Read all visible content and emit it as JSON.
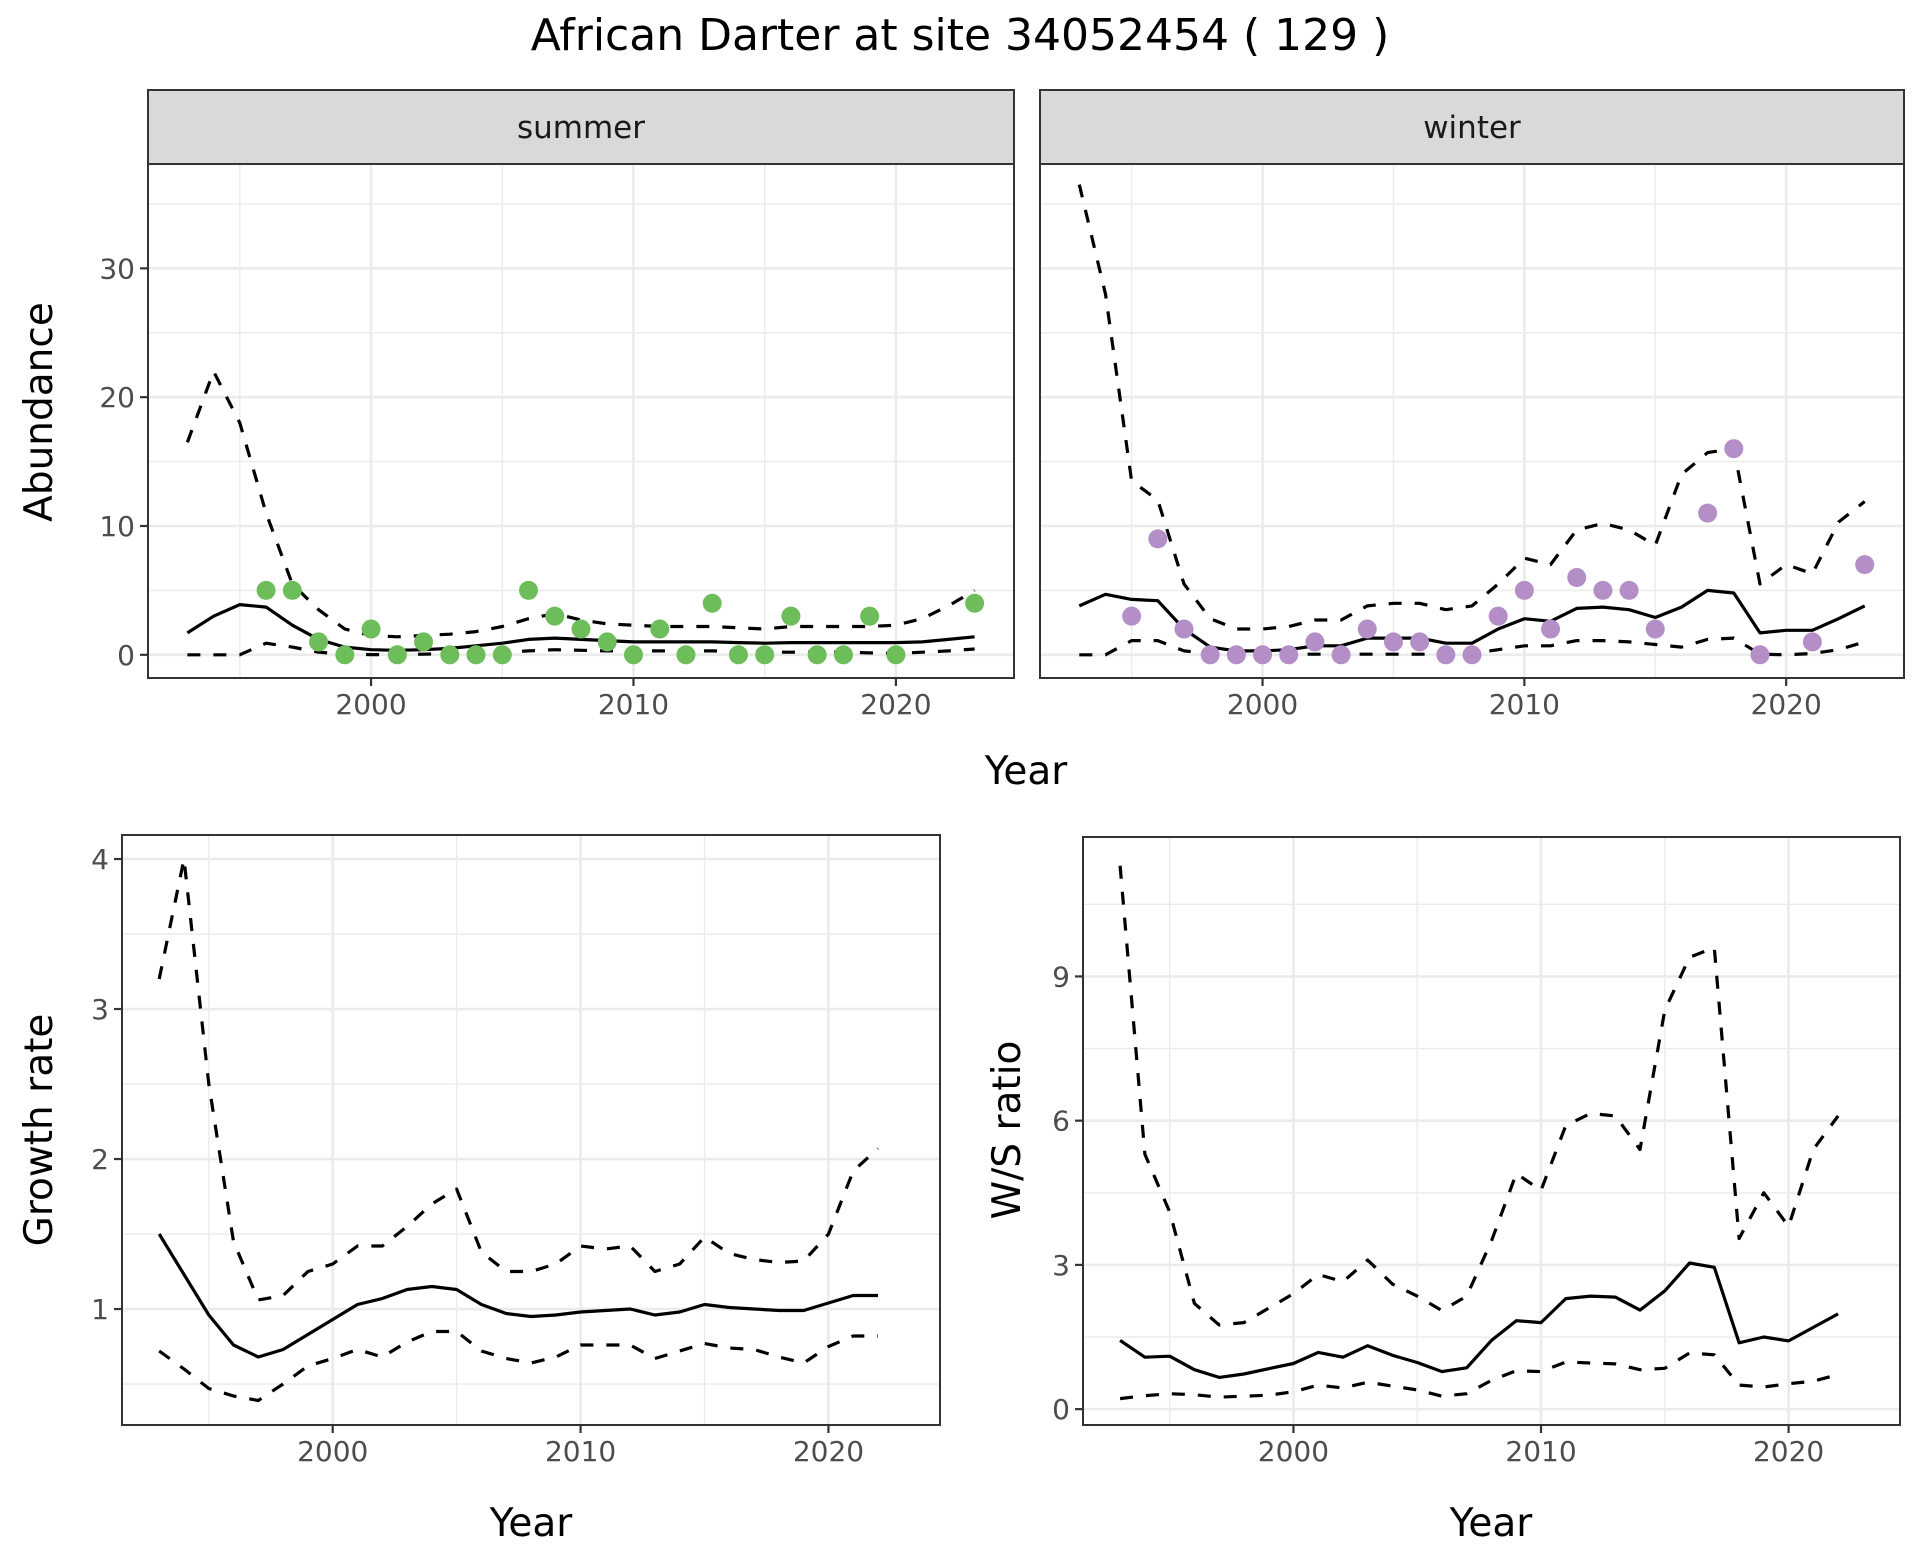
{
  "title": "African Darter at site 34052454 ( 129 )",
  "colors": {
    "summer_points": "#6dbd5a",
    "winter_points": "#b48ec6",
    "line": "#000000",
    "strip_fill": "#d9d9d9",
    "grid": "#ebebeb",
    "panel_border": "#333333"
  },
  "chart_data": [
    {
      "id": "abundance-summer",
      "type": "line+scatter",
      "facet": "summer",
      "xlabel": "Year",
      "ylabel": "Abundance",
      "xlim": [
        1991.5,
        2024.5
      ],
      "ylim": [
        -1.8,
        38.1
      ],
      "xticks": [
        2000,
        2010,
        2020
      ],
      "xtick_labels": [
        "2000",
        "2010",
        "2020"
      ],
      "yticks": [
        0,
        10,
        20,
        30
      ],
      "ytick_labels": [
        "0",
        "10",
        "20",
        "30"
      ],
      "grid": true,
      "x": [
        1993,
        1994,
        1995,
        1996,
        1997,
        1998,
        1999,
        2000,
        2001,
        2002,
        2003,
        2004,
        2005,
        2006,
        2007,
        2008,
        2009,
        2010,
        2011,
        2012,
        2013,
        2014,
        2015,
        2016,
        2017,
        2018,
        2019,
        2020,
        2021,
        2022,
        2023
      ],
      "series": [
        {
          "name": "mean",
          "style": "solid",
          "values": [
            1.7,
            3.0,
            3.9,
            3.7,
            2.3,
            1.2,
            0.6,
            0.4,
            0.35,
            0.4,
            0.5,
            0.7,
            0.9,
            1.2,
            1.3,
            1.2,
            1.1,
            1.0,
            1.0,
            1.0,
            1.0,
            0.95,
            0.9,
            0.95,
            0.95,
            0.95,
            0.95,
            0.95,
            1.0,
            1.2,
            1.4
          ]
        },
        {
          "name": "upper",
          "style": "dashed",
          "values": [
            16.5,
            22,
            18,
            11,
            5.5,
            3.5,
            2,
            1.5,
            1.4,
            1.5,
            1.6,
            1.8,
            2.2,
            2.8,
            3.2,
            2.7,
            2.4,
            2.3,
            2.2,
            2.2,
            2.2,
            2.1,
            2.0,
            2.2,
            2.2,
            2.2,
            2.2,
            2.3,
            2.8,
            3.8,
            5.0
          ]
        },
        {
          "name": "lower",
          "style": "dashed",
          "values": [
            0,
            0,
            0,
            0.9,
            0.6,
            0.2,
            0.05,
            0.02,
            0.02,
            0.05,
            0.1,
            0.1,
            0.2,
            0.3,
            0.4,
            0.35,
            0.3,
            0.3,
            0.3,
            0.3,
            0.3,
            0.25,
            0.2,
            0.2,
            0.2,
            0.2,
            0.15,
            0.1,
            0.2,
            0.3,
            0.45
          ]
        }
      ],
      "points": {
        "x": [
          1996,
          1997,
          1998,
          1999,
          2000,
          2001,
          2002,
          2003,
          2004,
          2005,
          2006,
          2007,
          2008,
          2009,
          2010,
          2011,
          2012,
          2013,
          2014,
          2015,
          2016,
          2017,
          2018,
          2019,
          2020,
          2023
        ],
        "y": [
          5,
          5,
          1,
          0,
          2,
          0,
          1,
          0,
          0,
          0,
          5,
          3,
          2,
          1,
          0,
          2,
          0,
          4,
          0,
          0,
          3,
          0,
          0,
          3,
          0,
          4
        ]
      }
    },
    {
      "id": "abundance-winter",
      "type": "line+scatter",
      "facet": "winter",
      "xlabel": "Year",
      "ylabel": "Abundance",
      "xlim": [
        1991.5,
        2024.5
      ],
      "ylim": [
        -1.8,
        38.1
      ],
      "xticks": [
        2000,
        2010,
        2020
      ],
      "xtick_labels": [
        "2000",
        "2010",
        "2020"
      ],
      "yticks": [
        0,
        10,
        20,
        30
      ],
      "grid": true,
      "x": [
        1993,
        1994,
        1995,
        1996,
        1997,
        1998,
        1999,
        2000,
        2001,
        2002,
        2003,
        2004,
        2005,
        2006,
        2007,
        2008,
        2009,
        2010,
        2011,
        2012,
        2013,
        2014,
        2015,
        2016,
        2017,
        2018,
        2019,
        2020,
        2021,
        2022,
        2023
      ],
      "series": [
        {
          "name": "mean",
          "style": "solid",
          "values": [
            3.8,
            4.7,
            4.3,
            4.2,
            2.0,
            0.6,
            0.3,
            0.3,
            0.4,
            0.7,
            0.7,
            1.3,
            1.3,
            1.3,
            0.9,
            0.9,
            2.0,
            2.8,
            2.6,
            3.6,
            3.7,
            3.5,
            2.9,
            3.7,
            5.0,
            4.8,
            1.7,
            1.9,
            1.9,
            2.8,
            3.8
          ]
        },
        {
          "name": "upper",
          "style": "dashed",
          "values": [
            36.5,
            28,
            13.5,
            12,
            5.5,
            2.8,
            2,
            2,
            2.2,
            2.7,
            2.7,
            3.8,
            4,
            4,
            3.5,
            3.8,
            5.5,
            7.5,
            7,
            9.7,
            10.2,
            9.7,
            8.5,
            14,
            15.7,
            16,
            5.5,
            7,
            6.3,
            10.3,
            11.9
          ]
        },
        {
          "name": "lower",
          "style": "dashed",
          "values": [
            0,
            0,
            1.1,
            1.1,
            0.3,
            0.1,
            0.05,
            0.05,
            0.05,
            0.05,
            0.05,
            0.05,
            0.05,
            0.05,
            0.05,
            0.1,
            0.4,
            0.7,
            0.7,
            1.1,
            1.1,
            1.0,
            0.8,
            0.6,
            1.2,
            1.3,
            0.05,
            0,
            0.1,
            0.4,
            1.0
          ]
        }
      ],
      "points": {
        "x": [
          1995,
          1996,
          1997,
          1998,
          1999,
          2000,
          2001,
          2002,
          2003,
          2004,
          2005,
          2006,
          2007,
          2008,
          2009,
          2010,
          2011,
          2012,
          2013,
          2014,
          2015,
          2017,
          2018,
          2019,
          2021,
          2023
        ],
        "y": [
          3,
          9,
          2,
          0,
          0,
          0,
          0,
          1,
          0,
          2,
          1,
          1,
          0,
          0,
          3,
          5,
          2,
          6,
          5,
          5,
          2,
          11,
          16,
          0,
          1,
          7
        ]
      }
    },
    {
      "id": "growth-rate",
      "type": "line",
      "xlabel": "Year",
      "ylabel": "Growth rate",
      "xlim": [
        1991.5,
        2024.5
      ],
      "ylim": [
        0.227,
        4.16
      ],
      "xticks": [
        2000,
        2010,
        2020
      ],
      "xtick_labels": [
        "2000",
        "2010",
        "2020"
      ],
      "yticks": [
        1,
        2,
        3,
        4
      ],
      "ytick_labels": [
        "1",
        "2",
        "3",
        "4"
      ],
      "grid": true,
      "x": [
        1993,
        1994,
        1995,
        1996,
        1997,
        1998,
        1999,
        2000,
        2001,
        2002,
        2003,
        2004,
        2005,
        2006,
        2007,
        2008,
        2009,
        2010,
        2011,
        2012,
        2013,
        2014,
        2015,
        2016,
        2017,
        2018,
        2019,
        2020,
        2021,
        2022
      ],
      "series": [
        {
          "name": "mean",
          "style": "solid",
          "values": [
            1.5,
            1.23,
            0.96,
            0.76,
            0.68,
            0.73,
            0.83,
            0.93,
            1.03,
            1.07,
            1.13,
            1.15,
            1.13,
            1.03,
            0.97,
            0.95,
            0.96,
            0.98,
            0.99,
            1.0,
            0.96,
            0.98,
            1.03,
            1.01,
            1.0,
            0.99,
            0.99,
            1.04,
            1.09,
            1.09
          ]
        },
        {
          "name": "upper",
          "style": "dashed",
          "values": [
            3.2,
            4.0,
            2.5,
            1.45,
            1.06,
            1.09,
            1.25,
            1.3,
            1.42,
            1.42,
            1.55,
            1.7,
            1.8,
            1.38,
            1.25,
            1.25,
            1.3,
            1.42,
            1.4,
            1.42,
            1.25,
            1.3,
            1.48,
            1.37,
            1.33,
            1.31,
            1.32,
            1.5,
            1.92,
            2.07
          ]
        },
        {
          "name": "lower",
          "style": "dashed",
          "values": [
            0.72,
            0.6,
            0.47,
            0.42,
            0.39,
            0.5,
            0.62,
            0.67,
            0.73,
            0.68,
            0.78,
            0.85,
            0.85,
            0.72,
            0.67,
            0.64,
            0.68,
            0.76,
            0.76,
            0.76,
            0.67,
            0.72,
            0.77,
            0.74,
            0.73,
            0.68,
            0.64,
            0.75,
            0.82,
            0.82
          ]
        }
      ]
    },
    {
      "id": "ws-ratio",
      "type": "line",
      "xlabel": "Year",
      "ylabel": "W/S ratio",
      "xlim": [
        1991.5,
        2024.5
      ],
      "ylim": [
        -0.33,
        11.9
      ],
      "xticks": [
        2000,
        2010,
        2020
      ],
      "xtick_labels": [
        "2000",
        "2010",
        "2020"
      ],
      "yticks": [
        0,
        3,
        6,
        9
      ],
      "ytick_labels": [
        "0",
        "3",
        "6",
        "9"
      ],
      "grid": true,
      "x": [
        1993,
        1994,
        1995,
        1996,
        1997,
        1998,
        1999,
        2000,
        2001,
        2002,
        2003,
        2004,
        2005,
        2006,
        2007,
        2008,
        2009,
        2010,
        2011,
        2012,
        2013,
        2014,
        2015,
        2016,
        2017,
        2018,
        2019,
        2020,
        2021,
        2022
      ],
      "series": [
        {
          "name": "mean",
          "style": "solid",
          "values": [
            1.43,
            1.08,
            1.1,
            0.82,
            0.66,
            0.73,
            0.84,
            0.95,
            1.18,
            1.08,
            1.32,
            1.12,
            0.97,
            0.78,
            0.86,
            1.43,
            1.84,
            1.8,
            2.3,
            2.35,
            2.33,
            2.06,
            2.46,
            3.04,
            2.95,
            1.38,
            1.5,
            1.42,
            1.7,
            1.98
          ]
        },
        {
          "name": "upper",
          "style": "dashed",
          "values": [
            11.3,
            5.3,
            4.1,
            2.2,
            1.75,
            1.8,
            2.1,
            2.4,
            2.8,
            2.65,
            3.1,
            2.6,
            2.35,
            2.05,
            2.35,
            3.5,
            4.9,
            4.55,
            5.9,
            6.15,
            6.1,
            5.4,
            8.3,
            9.4,
            9.6,
            3.55,
            4.5,
            3.8,
            5.4,
            6.1
          ]
        },
        {
          "name": "lower",
          "style": "dashed",
          "values": [
            0.22,
            0.28,
            0.32,
            0.3,
            0.25,
            0.27,
            0.29,
            0.36,
            0.5,
            0.44,
            0.56,
            0.48,
            0.4,
            0.27,
            0.32,
            0.6,
            0.8,
            0.78,
            0.98,
            0.96,
            0.94,
            0.82,
            0.85,
            1.17,
            1.13,
            0.5,
            0.46,
            0.53,
            0.58,
            0.72
          ]
        }
      ]
    }
  ]
}
